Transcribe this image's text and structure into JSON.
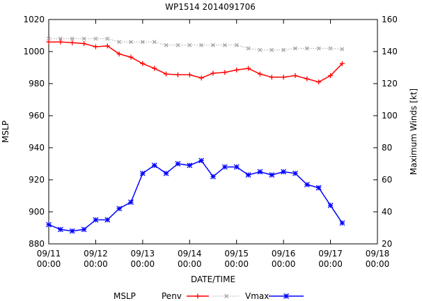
{
  "chart_data": {
    "type": "line",
    "title": "WP1514 2014091706",
    "xlabel": "DATE/TIME",
    "ylabel": "MSLP",
    "y2label": "Maximum Winds [kt]",
    "xlim": [
      0,
      7
    ],
    "ylim": [
      880,
      1020
    ],
    "y2lim": [
      20,
      160
    ],
    "x_ticks": [
      {
        "value": 0,
        "line1": "09/11",
        "line2": "00:00"
      },
      {
        "value": 1,
        "line1": "09/12",
        "line2": "00:00"
      },
      {
        "value": 2,
        "line1": "09/13",
        "line2": "00:00"
      },
      {
        "value": 3,
        "line1": "09/14",
        "line2": "00:00"
      },
      {
        "value": 4,
        "line1": "09/15",
        "line2": "00:00"
      },
      {
        "value": 5,
        "line1": "09/16",
        "line2": "00:00"
      },
      {
        "value": 6,
        "line1": "09/17",
        "line2": "00:00"
      },
      {
        "value": 7,
        "line1": "09/18",
        "line2": "00:00"
      }
    ],
    "y_ticks": [
      "880",
      "900",
      "920",
      "940",
      "960",
      "980",
      "1000",
      "1020"
    ],
    "y2_ticks": [
      "20",
      "40",
      "60",
      "80",
      "100",
      "120",
      "140",
      "160"
    ],
    "legend_title": "MSLP",
    "legend_position": "bottom",
    "series": [
      {
        "name": "Penv",
        "axis": "y",
        "color": "#ff0000",
        "marker": "plus",
        "x": [
          0,
          0.25,
          0.5,
          0.75,
          1,
          1.25,
          1.5,
          1.75,
          2,
          2.25,
          2.5,
          2.75,
          3,
          3.25,
          3.5,
          3.75,
          4,
          4.25,
          4.5,
          4.75,
          5,
          5.25,
          5.5,
          5.75,
          6,
          6.25
        ],
        "values": [
          1006,
          1006,
          1005.5,
          1005,
          1003,
          1003.5,
          998.5,
          996.5,
          992.5,
          989.5,
          986,
          985.5,
          985.5,
          983.5,
          986.5,
          987,
          988.5,
          989.5,
          986,
          984,
          984,
          985,
          983,
          981,
          985,
          992.5
        ]
      },
      {
        "name": "",
        "axis": "y2",
        "color": "#a0a0a0",
        "marker": "x",
        "dashed": true,
        "x": [
          0,
          0.25,
          0.5,
          0.75,
          1,
          1.25,
          1.5,
          1.75,
          2,
          2.25,
          2.5,
          2.75,
          3,
          3.25,
          3.5,
          3.75,
          4,
          4.25,
          4.5,
          4.75,
          5,
          5.25,
          5.5,
          5.75,
          6,
          6.25
        ],
        "values": [
          148,
          148,
          148,
          148,
          148,
          148,
          146,
          146,
          146,
          146,
          144,
          144,
          144,
          144,
          144,
          144,
          144,
          142,
          141,
          141,
          141,
          142,
          142,
          142,
          142,
          141.5
        ]
      },
      {
        "name": "Vmax",
        "axis": "y2",
        "color": "#0000ff",
        "marker": "star",
        "x": [
          0,
          0.25,
          0.5,
          0.75,
          1,
          1.25,
          1.5,
          1.75,
          2,
          2.25,
          2.5,
          2.75,
          3,
          3.25,
          3.5,
          3.75,
          4,
          4.25,
          4.5,
          4.75,
          5,
          5.25,
          5.5,
          5.75,
          6,
          6.25
        ],
        "values": [
          32,
          29,
          28,
          29,
          35,
          35,
          42,
          46,
          64,
          69,
          64,
          70,
          69,
          72,
          62,
          68,
          68,
          63,
          65,
          63,
          65,
          64,
          57,
          55,
          44,
          33
        ]
      }
    ]
  }
}
